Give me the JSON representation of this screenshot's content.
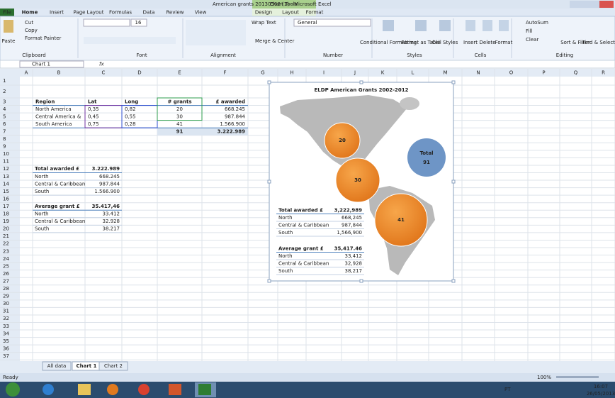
{
  "window": {
    "title": "American grants 20130508 (1)  -  Microsoft Excel",
    "context_tab": "Chart Tools"
  },
  "ribbon": {
    "tabs": [
      "File",
      "Home",
      "Insert",
      "Page Layout",
      "Formulas",
      "Data",
      "Review",
      "View",
      "Design",
      "Layout",
      "Format"
    ],
    "groups": [
      "Clipboard",
      "Font",
      "Alignment",
      "Number",
      "Styles",
      "Cells",
      "Editing"
    ],
    "clipboard": [
      "Paste",
      "Cut",
      "Copy",
      "Format Painter"
    ],
    "font_size": "16",
    "alignment": [
      "Wrap Text",
      "Merge & Center"
    ],
    "number_format": "General",
    "styles": [
      "Conditional Formatting",
      "Format as Table",
      "Cell Styles"
    ],
    "cells": [
      "Insert",
      "Delete",
      "Format"
    ],
    "editing": [
      "AutoSum",
      "Fill",
      "Clear",
      "Sort & Filter",
      "Find & Select"
    ]
  },
  "formula_bar": {
    "name_box": "Chart 1",
    "fx": "fx"
  },
  "columns": [
    "A",
    "B",
    "C",
    "D",
    "E",
    "F",
    "G",
    "H",
    "I",
    "J",
    "K",
    "L",
    "M",
    "N",
    "O",
    "P",
    "Q",
    "R"
  ],
  "row_numbers": [
    1,
    2,
    3,
    4,
    5,
    6,
    7,
    8,
    9,
    10,
    11,
    12,
    13,
    14,
    15,
    16,
    17,
    18,
    19,
    20,
    21,
    22,
    23,
    24,
    25,
    26,
    27,
    28,
    29,
    30,
    31,
    32,
    33,
    34,
    35,
    36,
    37
  ],
  "grant_table": {
    "header": [
      "Region",
      "Lat",
      "Long",
      "# grants",
      "£ awarded"
    ],
    "rows": [
      [
        "North America",
        "0,35",
        "0,82",
        "20",
        "668.245"
      ],
      [
        "Central America &",
        "0,45",
        "0,55",
        "30",
        "987.844"
      ],
      [
        "South America",
        "0,75",
        "0,28",
        "41",
        "1.566.900"
      ]
    ],
    "totals": [
      "91",
      "3.222.989"
    ]
  },
  "summary_tables": [
    {
      "title": "Total awarded £",
      "total": "3.222.989",
      "rows": [
        [
          "North",
          "668.245"
        ],
        [
          "Central & Caribbean",
          "987.844"
        ],
        [
          "South",
          "1.566.900"
        ]
      ]
    },
    {
      "title": "Average grant £",
      "total": "35.417,46",
      "rows": [
        [
          "North",
          "33.412"
        ],
        [
          "Central & Caribbean",
          "32.928"
        ],
        [
          "South",
          "38.217"
        ]
      ]
    }
  ],
  "chart": {
    "title": "ELDP American Grants 2002-2012",
    "bubbles": [
      "20",
      "30",
      "41"
    ],
    "total": {
      "label": "Total",
      "value": "91"
    },
    "tables": [
      {
        "title": "Total awarded £",
        "total": "3,222,989",
        "rows": [
          [
            "North",
            "668,245"
          ],
          [
            "Central & Caribbean",
            "987,844"
          ],
          [
            "South",
            "1,566,900"
          ]
        ]
      },
      {
        "title": "Average grant £",
        "total": "35,417.46",
        "rows": [
          [
            "North",
            "33,412"
          ],
          [
            "Central & Caribbean",
            "32,928"
          ],
          [
            "South",
            "38,217"
          ]
        ]
      }
    ]
  },
  "sheet_tabs": [
    "All data",
    "Chart 1",
    "Chart 2"
  ],
  "status": {
    "ready": "Ready",
    "zoom": "100%"
  },
  "taskbar": {
    "language": "PT",
    "time": "16:07",
    "date": "26/05/2013"
  }
}
